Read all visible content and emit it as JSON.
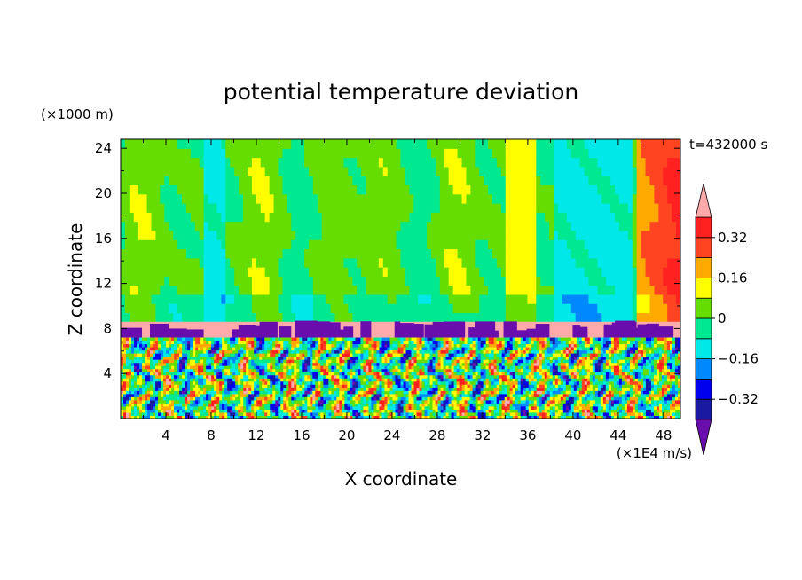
{
  "chart_data": {
    "type": "heatmap",
    "title": "potential temperature deviation",
    "xlabel": "X coordinate",
    "ylabel": "Z coordinate",
    "x_unit": "(×1E4 m/s)",
    "y_unit": "(×1000 m)",
    "time_label": "t=432000 s",
    "xlim": [
      0,
      49.5
    ],
    "ylim": [
      0,
      24.8
    ],
    "x_ticks": [
      4,
      8,
      12,
      16,
      20,
      24,
      28,
      32,
      36,
      40,
      44,
      48
    ],
    "y_ticks": [
      4,
      8,
      12,
      16,
      20,
      24
    ],
    "colorbar": {
      "labels": [
        {
          "text": "0.32",
          "value": 0.32
        },
        {
          "text": "0.16",
          "value": 0.16
        },
        {
          "text": "0",
          "value": 0
        },
        {
          "text": "−0.16",
          "value": -0.16
        },
        {
          "text": "−0.32",
          "value": -0.32
        }
      ],
      "levels": [
        -0.4,
        -0.32,
        -0.24,
        -0.16,
        -0.08,
        0,
        0.08,
        0.16,
        0.24,
        0.32,
        0.4
      ],
      "colors": [
        "#6a0dad",
        "#1a1aa0",
        "#0000ee",
        "#0088ff",
        "#00e8e8",
        "#00e890",
        "#66dd00",
        "#ffff00",
        "#ffaa00",
        "#ff4422",
        "#ff2020",
        "#ffaaaa"
      ],
      "under_color": "#6a0dad",
      "over_color": "#ffaaaa"
    },
    "layers": [
      {
        "name": "upper",
        "z_range": [
          8.6,
          24.8
        ],
        "typical_value": 0.02
      },
      {
        "name": "band",
        "z_range": [
          7.2,
          8.6
        ],
        "typical_value": 0.45
      },
      {
        "name": "lower",
        "z_range": [
          0,
          7.2
        ],
        "typical_value": 0.0
      }
    ]
  }
}
